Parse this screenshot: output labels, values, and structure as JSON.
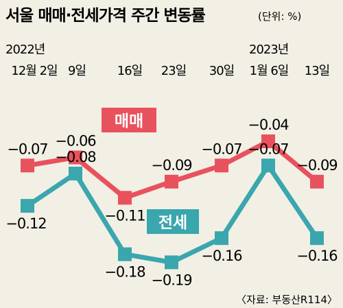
{
  "chart_data": {
    "type": "line",
    "title": "서울 매매·전세가격 주간 변동률",
    "unit_label": "(단위: %)",
    "year_labels": [
      "2022년",
      "2023년"
    ],
    "categories": [
      "12월 2일",
      "9일",
      "16일",
      "23일",
      "30일",
      "1월 6일",
      "13일"
    ],
    "series": [
      {
        "name": "매매",
        "values": [
          -0.07,
          -0.06,
          -0.11,
          -0.09,
          -0.07,
          -0.04,
          -0.09
        ],
        "labels": [
          "-0.07",
          "-0.06",
          "-0.11",
          "-0.09",
          "-0.07",
          "-0.04",
          "-0.09"
        ],
        "color": "#e8525d",
        "label_bg": "#e8525d"
      },
      {
        "name": "전세",
        "values": [
          -0.12,
          -0.08,
          -0.18,
          -0.19,
          -0.16,
          -0.07,
          -0.16
        ],
        "labels": [
          "-0.12",
          "-0.08",
          "-0.18",
          "-0.19",
          "-0.16",
          "-0.07",
          "-0.16"
        ],
        "color": "#3aa6ad",
        "label_bg": "#3aa6ad"
      }
    ],
    "source": "〈자료: 부동산R114〉",
    "grid": false,
    "legend": "inline"
  }
}
